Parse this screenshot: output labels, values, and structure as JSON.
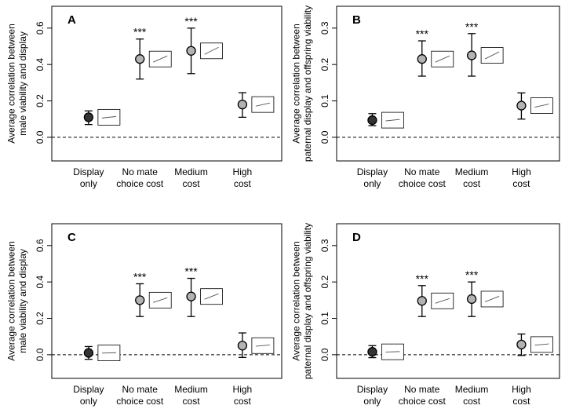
{
  "chart_data": [
    {
      "type": "errorbar",
      "panel": "A",
      "categories": [
        [
          "Display",
          "only"
        ],
        [
          "No mate",
          "choice cost"
        ],
        [
          "Medium",
          "cost"
        ],
        [
          "High",
          "cost"
        ]
      ],
      "values": [
        0.11,
        0.43,
        0.475,
        0.18
      ],
      "lower": [
        0.07,
        0.32,
        0.35,
        0.11
      ],
      "upper": [
        0.145,
        0.54,
        0.6,
        0.245
      ],
      "significance": [
        "",
        "***",
        "***",
        ""
      ],
      "inset_slopes": [
        0.1,
        0.4,
        0.45,
        0.2
      ],
      "ylabel": [
        "Average correlation between",
        "male viability and display"
      ],
      "ylim": [
        -0.13,
        0.72
      ],
      "yticks": [
        "0.0",
        "0.2",
        "0.4",
        "0.6"
      ],
      "colors": [
        "#333333",
        "#b3b3b3",
        "#b3b3b3",
        "#b3b3b3"
      ]
    },
    {
      "type": "errorbar",
      "panel": "B",
      "categories": [
        [
          "Display",
          "only"
        ],
        [
          "No mate",
          "choice cost"
        ],
        [
          "Medium",
          "cost"
        ],
        [
          "High",
          "cost"
        ]
      ],
      "values": [
        0.047,
        0.215,
        0.225,
        0.087
      ],
      "lower": [
        0.032,
        0.168,
        0.168,
        0.05
      ],
      "upper": [
        0.065,
        0.265,
        0.285,
        0.122
      ],
      "significance": [
        "",
        "***",
        "***",
        ""
      ],
      "inset_slopes": [
        0.1,
        0.4,
        0.45,
        0.2
      ],
      "ylabel": [
        "Average correlation between",
        "paternal display and offspring viability"
      ],
      "ylim": [
        -0.065,
        0.36
      ],
      "yticks": [
        "0.0",
        "0.1",
        "0.2",
        "0.3"
      ],
      "colors": [
        "#333333",
        "#b3b3b3",
        "#b3b3b3",
        "#b3b3b3"
      ]
    },
    {
      "type": "errorbar",
      "panel": "C",
      "categories": [
        [
          "Display",
          "only"
        ],
        [
          "No mate",
          "choice cost"
        ],
        [
          "Medium",
          "cost"
        ],
        [
          "High",
          "cost"
        ]
      ],
      "values": [
        0.01,
        0.3,
        0.32,
        0.05
      ],
      "lower": [
        -0.025,
        0.21,
        0.21,
        -0.015
      ],
      "upper": [
        0.045,
        0.39,
        0.42,
        0.12
      ],
      "significance": [
        "",
        "***",
        "***",
        ""
      ],
      "inset_slopes": [
        0.03,
        0.3,
        0.35,
        0.08
      ],
      "ylabel": [
        "Average correlation between",
        "male viability and display"
      ],
      "ylim": [
        -0.13,
        0.72
      ],
      "yticks": [
        "0.0",
        "0.2",
        "0.4",
        "0.6"
      ],
      "colors": [
        "#333333",
        "#b3b3b3",
        "#b3b3b3",
        "#b3b3b3"
      ]
    },
    {
      "type": "errorbar",
      "panel": "D",
      "categories": [
        [
          "Display",
          "only"
        ],
        [
          "No mate",
          "choice cost"
        ],
        [
          "Medium",
          "cost"
        ],
        [
          "High",
          "cost"
        ]
      ],
      "values": [
        0.008,
        0.148,
        0.153,
        0.028
      ],
      "lower": [
        -0.008,
        0.105,
        0.105,
        -0.002
      ],
      "upper": [
        0.025,
        0.19,
        0.2,
        0.057
      ],
      "significance": [
        "",
        "***",
        "***",
        ""
      ],
      "inset_slopes": [
        0.03,
        0.3,
        0.35,
        0.08
      ],
      "ylabel": [
        "Average correlation between",
        "paternal display and offspring viability"
      ],
      "ylim": [
        -0.065,
        0.36
      ],
      "yticks": [
        "0.0",
        "0.1",
        "0.2",
        "0.3"
      ],
      "colors": [
        "#333333",
        "#b3b3b3",
        "#b3b3b3",
        "#b3b3b3"
      ]
    }
  ]
}
